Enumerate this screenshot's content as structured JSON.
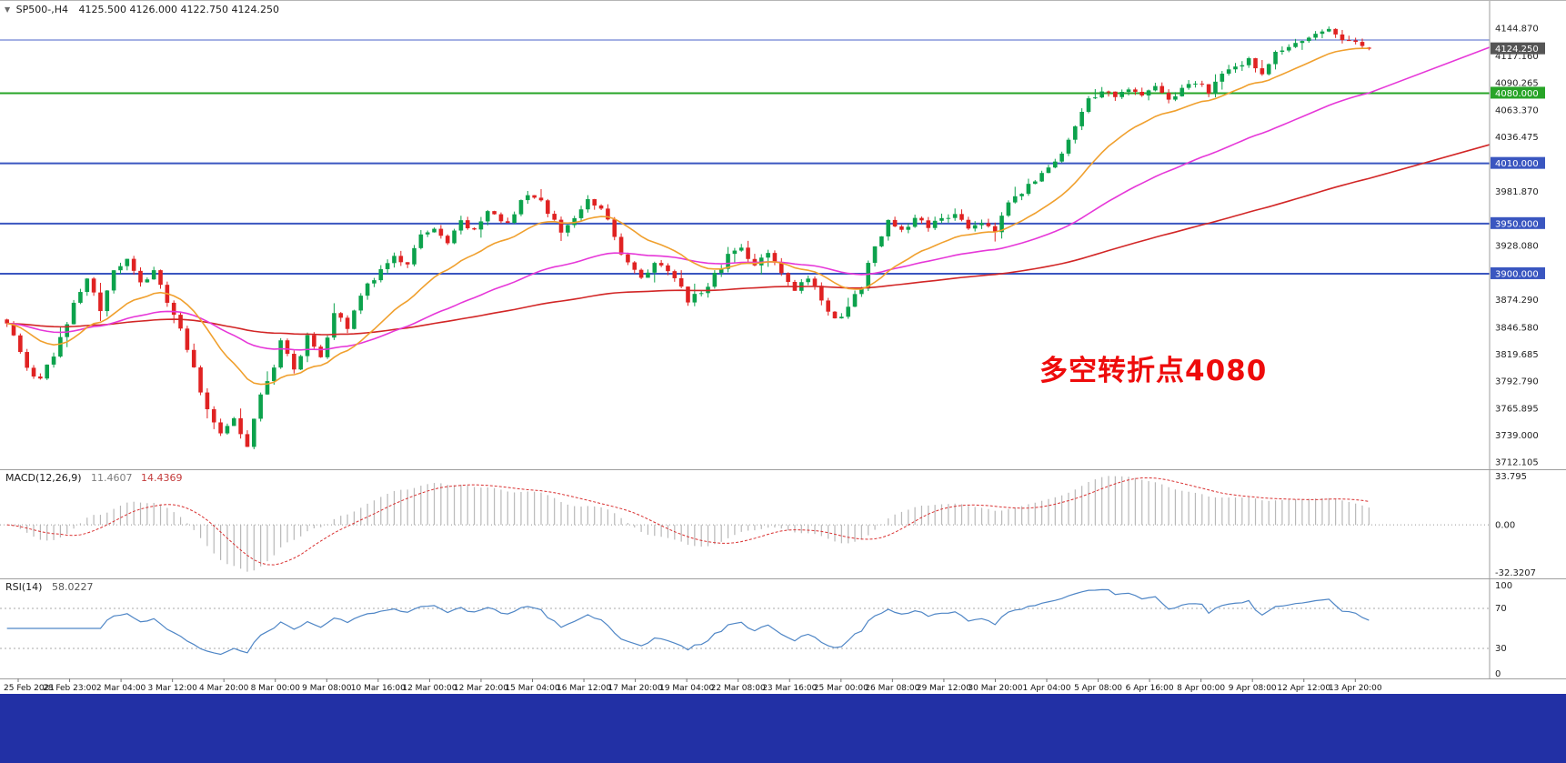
{
  "window": {
    "symbol_timeframe": "SP500-,H4",
    "quote": "4125.500 4126.000 4122.750 4124.250",
    "open": "4125.500",
    "high": "4126.000",
    "low": "4122.750",
    "close": "4124.250"
  },
  "icons": {
    "symbol_marker": "▼"
  },
  "colors": {
    "up": "#0ca24c",
    "down": "#e02222",
    "ma_fast": "#f0a02e",
    "ma_medium": "#e637d8",
    "ma_slow": "#d22626",
    "level_blue": "#3a56c0",
    "level_green": "#27a427",
    "badge_price": "#555555",
    "macd_hist": "#b8b8b8",
    "macd_signal": "#d93030",
    "rsi_line": "#4f86c6",
    "separator": "#9e9e9e",
    "taskbar": "#2230a5",
    "annotation": "#ee0b0b"
  },
  "annotation": {
    "text": "多空转折点4080",
    "color": "#ee0b0b"
  },
  "price_axis": {
    "ticks": [
      {
        "label": "4144.870",
        "price": 4144.87
      },
      {
        "label": "4117.160",
        "price": 4117.16
      },
      {
        "label": "4090.265",
        "price": 4090.265
      },
      {
        "label": "4063.370",
        "price": 4063.37
      },
      {
        "label": "4036.475",
        "price": 4036.475
      },
      {
        "label": "3981.870",
        "price": 3981.87
      },
      {
        "label": "3928.080",
        "price": 3928.08
      },
      {
        "label": "3874.290",
        "price": 3874.29
      },
      {
        "label": "3846.580",
        "price": 3846.58
      },
      {
        "label": "3819.685",
        "price": 3819.685
      },
      {
        "label": "3792.790",
        "price": 3792.79
      },
      {
        "label": "3765.895",
        "price": 3765.895
      },
      {
        "label": "3739.000",
        "price": 3739.0
      },
      {
        "label": "3712.105",
        "price": 3712.105
      }
    ],
    "badges": [
      {
        "label": "4124.250",
        "price": 4124.25,
        "bg": "#555555"
      },
      {
        "label": "4080.000",
        "price": 4080.0,
        "bg": "#27a427"
      },
      {
        "label": "4010.000",
        "price": 4010.0,
        "bg": "#3a56c0"
      },
      {
        "label": "3950.000",
        "price": 3950.0,
        "bg": "#3a56c0"
      },
      {
        "label": "3900.000",
        "price": 3900.0,
        "bg": "#3a56c0"
      }
    ]
  },
  "hlines": [
    {
      "price": 4133.0,
      "color": "#4a63c8",
      "width": 1
    },
    {
      "price": 4080.0,
      "color": "#27a427",
      "width": 2
    },
    {
      "price": 4010.0,
      "color": "#3a56c0",
      "width": 2
    },
    {
      "price": 3950.0,
      "color": "#3a56c0",
      "width": 2
    },
    {
      "price": 3900.0,
      "color": "#3a56c0",
      "width": 2
    }
  ],
  "indicators": {
    "macd": {
      "label": "MACD(12,26,9)",
      "value1": "11.4607",
      "value2": "14.4369",
      "params": [
        12,
        26,
        9
      ],
      "scale_labels": [
        "33.795",
        "0.00",
        "-32.3207"
      ]
    },
    "rsi": {
      "label": "RSI(14)",
      "value": "58.0227",
      "period": 14,
      "levels": [
        70,
        30
      ],
      "scale_labels": [
        "100",
        "70",
        "30",
        "0"
      ]
    }
  },
  "time_axis": {
    "labels": [
      "25 Feb 2021",
      "28 Feb 23:00",
      "2 Mar 04:00",
      "3 Mar 12:00",
      "4 Mar 20:00",
      "8 Mar 00:00",
      "9 Mar 08:00",
      "10 Mar 16:00",
      "12 Mar 00:00",
      "12 Mar 20:00",
      "15 Mar 04:00",
      "16 Mar 12:00",
      "17 Mar 20:00",
      "19 Mar 04:00",
      "22 Mar 08:00",
      "23 Mar 16:00",
      "25 Mar 00:00",
      "26 Mar 08:00",
      "29 Mar 12:00",
      "30 Mar 20:00",
      "1 Apr 04:00",
      "5 Apr 08:00",
      "6 Apr 16:00",
      "8 Apr 00:00",
      "9 Apr 08:00",
      "12 Apr 12:00",
      "13 Apr 20:00"
    ]
  },
  "chart_data": {
    "type": "candlestick",
    "symbol": "SP500-",
    "timeframe": "H4",
    "title": "SP500-,H4 4125.500 4126.000 4122.750 4124.250",
    "price_axis_range": [
      3712.105,
      4144.87
    ],
    "candle_count": 205,
    "last_ohlc": [
      4125.5,
      4126.0,
      4122.75,
      4124.25
    ],
    "close_waypoints": [
      [
        0,
        3852
      ],
      [
        3,
        3808
      ],
      [
        5,
        3792
      ],
      [
        8,
        3835
      ],
      [
        10,
        3870
      ],
      [
        12,
        3898
      ],
      [
        14,
        3862
      ],
      [
        16,
        3900
      ],
      [
        18,
        3912
      ],
      [
        20,
        3888
      ],
      [
        22,
        3902
      ],
      [
        24,
        3870
      ],
      [
        26,
        3845
      ],
      [
        28,
        3805
      ],
      [
        30,
        3762
      ],
      [
        32,
        3742
      ],
      [
        34,
        3755
      ],
      [
        36,
        3728
      ],
      [
        38,
        3782
      ],
      [
        40,
        3808
      ],
      [
        41,
        3835
      ],
      [
        43,
        3802
      ],
      [
        45,
        3840
      ],
      [
        47,
        3818
      ],
      [
        49,
        3858
      ],
      [
        51,
        3848
      ],
      [
        54,
        3888
      ],
      [
        56,
        3905
      ],
      [
        58,
        3918
      ],
      [
        60,
        3908
      ],
      [
        62,
        3938
      ],
      [
        64,
        3945
      ],
      [
        66,
        3932
      ],
      [
        68,
        3952
      ],
      [
        70,
        3945
      ],
      [
        72,
        3960
      ],
      [
        75,
        3952
      ],
      [
        77,
        3972
      ],
      [
        79,
        3978
      ],
      [
        81,
        3962
      ],
      [
        83,
        3942
      ],
      [
        85,
        3955
      ],
      [
        87,
        3972
      ],
      [
        89,
        3968
      ],
      [
        91,
        3935
      ],
      [
        93,
        3908
      ],
      [
        95,
        3895
      ],
      [
        97,
        3912
      ],
      [
        99,
        3900
      ],
      [
        101,
        3888
      ],
      [
        102,
        3872
      ],
      [
        104,
        3882
      ],
      [
        106,
        3898
      ],
      [
        108,
        3918
      ],
      [
        110,
        3925
      ],
      [
        112,
        3908
      ],
      [
        114,
        3922
      ],
      [
        116,
        3898
      ],
      [
        118,
        3882
      ],
      [
        120,
        3895
      ],
      [
        122,
        3875
      ],
      [
        124,
        3852
      ],
      [
        126,
        3865
      ],
      [
        128,
        3888
      ],
      [
        130,
        3928
      ],
      [
        132,
        3952
      ],
      [
        134,
        3942
      ],
      [
        136,
        3958
      ],
      [
        138,
        3948
      ],
      [
        140,
        3955
      ],
      [
        142,
        3962
      ],
      [
        144,
        3945
      ],
      [
        146,
        3952
      ],
      [
        148,
        3942
      ],
      [
        150,
        3968
      ],
      [
        152,
        3982
      ],
      [
        154,
        3995
      ],
      [
        156,
        4008
      ],
      [
        158,
        4022
      ],
      [
        160,
        4048
      ],
      [
        162,
        4072
      ],
      [
        164,
        4082
      ],
      [
        166,
        4075
      ],
      [
        168,
        4082
      ],
      [
        170,
        4078
      ],
      [
        172,
        4085
      ],
      [
        174,
        4072
      ],
      [
        176,
        4088
      ],
      [
        178,
        4092
      ],
      [
        180,
        4082
      ],
      [
        182,
        4098
      ],
      [
        184,
        4105
      ],
      [
        186,
        4112
      ],
      [
        188,
        4098
      ],
      [
        190,
        4118
      ],
      [
        192,
        4125
      ],
      [
        194,
        4132
      ],
      [
        196,
        4138
      ],
      [
        198,
        4142
      ],
      [
        200,
        4135
      ],
      [
        202,
        4128
      ],
      [
        204,
        4124.25
      ]
    ],
    "moving_averages": [
      {
        "name": "slow",
        "period": 160,
        "color": "#d22626",
        "extend": true
      },
      {
        "name": "medium",
        "period": 55,
        "color": "#e637d8",
        "extend": true
      },
      {
        "name": "fast",
        "period": 18,
        "color": "#f0a02e",
        "extend": false
      }
    ],
    "levels": [
      4133,
      4080,
      4010,
      3950,
      3900
    ],
    "macd": {
      "fast": 12,
      "slow": 26,
      "signal": 9,
      "last": [
        11.4607,
        14.4369
      ],
      "range": [
        -32.3207,
        33.795
      ]
    },
    "rsi": {
      "period": 14,
      "last": 58.0227,
      "range": [
        0,
        100
      ],
      "levels": [
        30,
        70
      ]
    }
  }
}
